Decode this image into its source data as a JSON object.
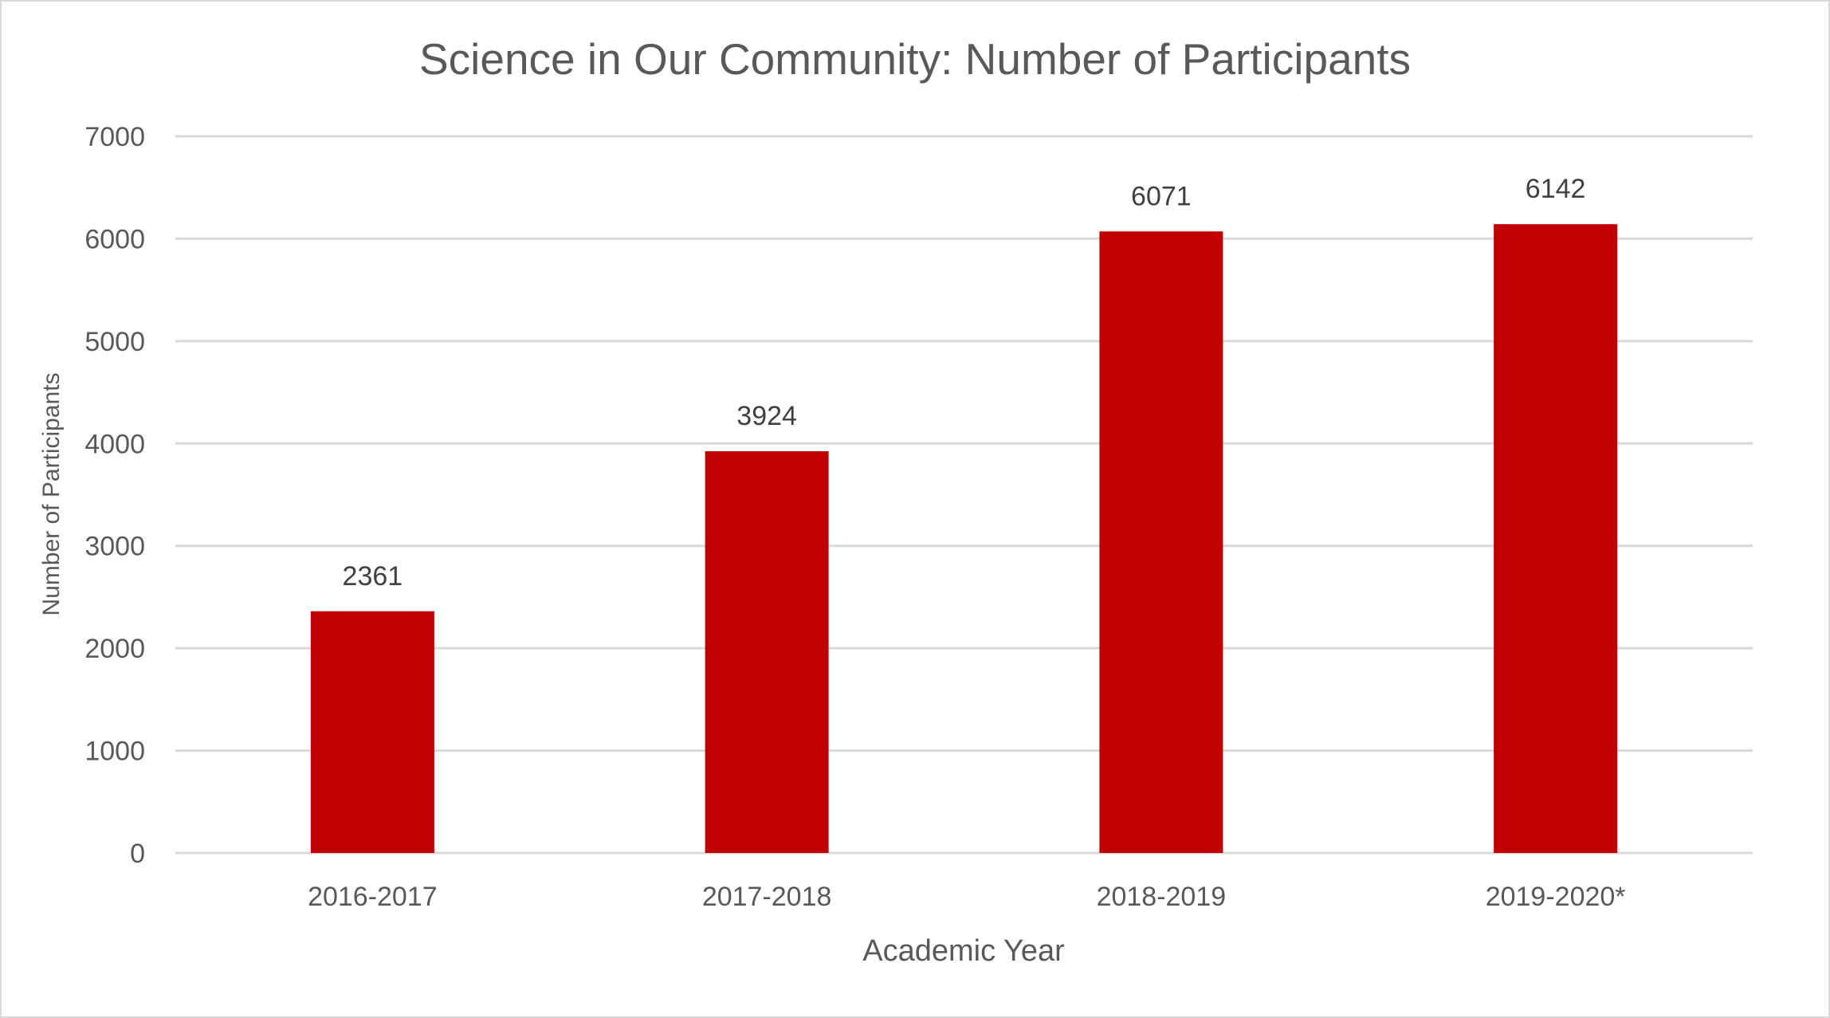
{
  "chart_data": {
    "type": "bar",
    "title": "Science in Our Community: Number of Participants",
    "xlabel": "Academic Year",
    "ylabel": "Number of Participants",
    "categories": [
      "2016-2017",
      "2017-2018",
      "2018-2019",
      "2019-2020*"
    ],
    "values": [
      2361,
      3924,
      6071,
      6142
    ],
    "data_labels": [
      "2361",
      "3924",
      "6071",
      "6142"
    ],
    "ylim": [
      0,
      7000
    ],
    "yticks": [
      "0",
      "1000",
      "2000",
      "3000",
      "4000",
      "5000",
      "6000",
      "7000"
    ],
    "grid": true,
    "legend": "none",
    "bar_color": "#c00000",
    "text_color": "#595959",
    "grid_color": "#d9d9d9"
  }
}
